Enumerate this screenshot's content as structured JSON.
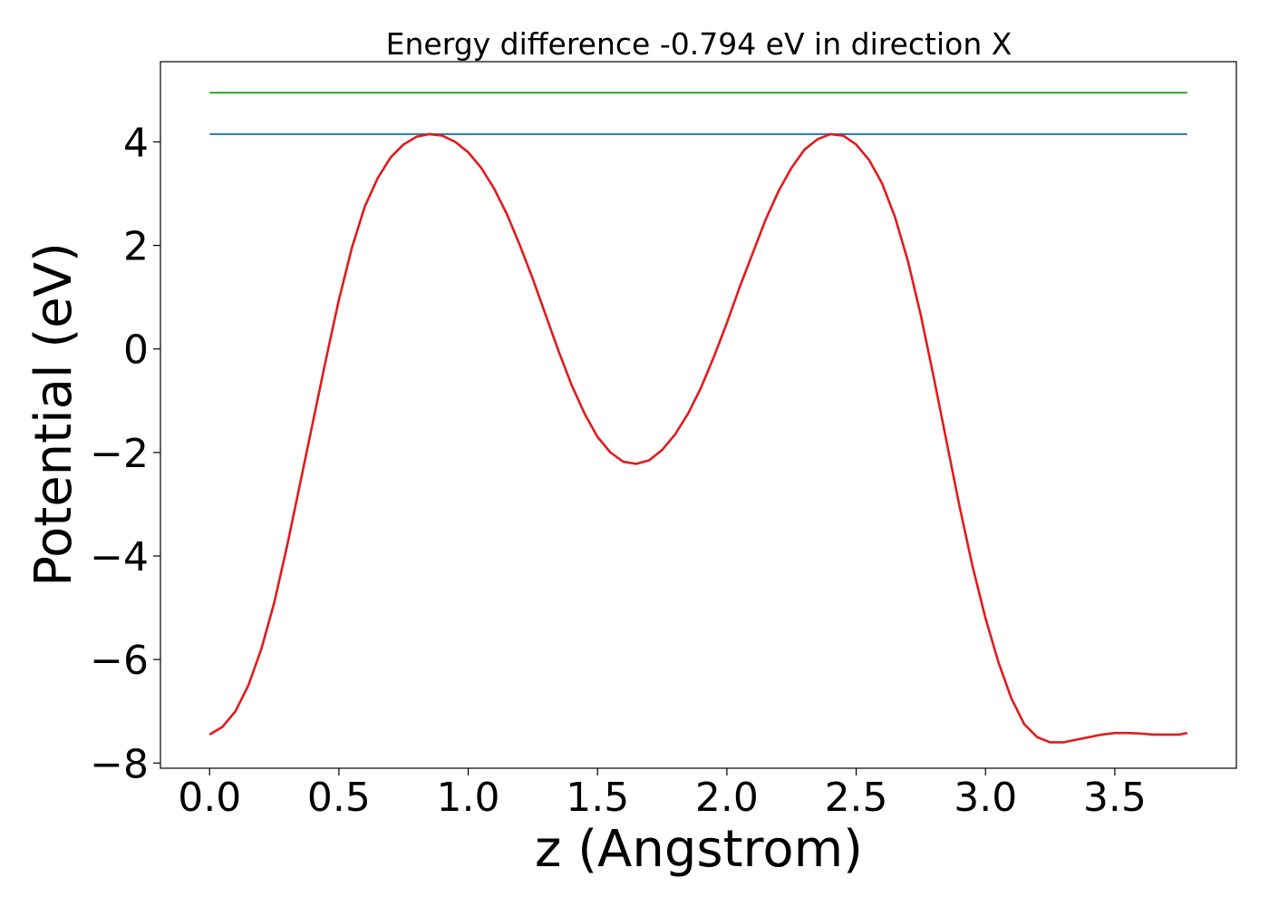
{
  "chart_data": {
    "type": "line",
    "title": "Energy difference -0.794 eV in direction X",
    "xlabel": "z (Angstrom)",
    "ylabel": "Potential (eV)",
    "xlim": [
      -0.19,
      3.97
    ],
    "ylim": [
      -8.1,
      5.55
    ],
    "x_ticks": [
      0.0,
      0.5,
      1.0,
      1.5,
      2.0,
      2.5,
      3.0,
      3.5
    ],
    "x_tick_labels": [
      "0.0",
      "0.5",
      "1.0",
      "1.5",
      "2.0",
      "2.5",
      "3.0",
      "3.5"
    ],
    "y_ticks": [
      -8,
      -6,
      -4,
      -2,
      0,
      2,
      4
    ],
    "y_tick_labels": [
      "−8",
      "−6",
      "−4",
      "−2",
      "0",
      "2",
      "4"
    ],
    "grid": false,
    "colors": {
      "potential": "#e31a1c",
      "level_low": "#1f78b4",
      "level_high": "#33a02c"
    },
    "hlines": [
      {
        "y": 4.95,
        "x": [
          0.0,
          3.78
        ],
        "color": "#33a02c"
      },
      {
        "y": 4.15,
        "x": [
          0.0,
          3.78
        ],
        "color": "#1f78b4"
      }
    ],
    "series": [
      {
        "color": "#e31a1c",
        "x": [
          0.0,
          0.05,
          0.1,
          0.15,
          0.2,
          0.25,
          0.3,
          0.35,
          0.4,
          0.45,
          0.5,
          0.55,
          0.6,
          0.65,
          0.7,
          0.75,
          0.8,
          0.85,
          0.9,
          0.95,
          1.0,
          1.05,
          1.1,
          1.15,
          1.2,
          1.25,
          1.3,
          1.35,
          1.4,
          1.45,
          1.5,
          1.55,
          1.6,
          1.65,
          1.7,
          1.75,
          1.8,
          1.85,
          1.9,
          1.95,
          2.0,
          2.05,
          2.1,
          2.15,
          2.2,
          2.25,
          2.3,
          2.35,
          2.4,
          2.45,
          2.5,
          2.55,
          2.6,
          2.65,
          2.7,
          2.75,
          2.8,
          2.85,
          2.9,
          2.95,
          3.0,
          3.05,
          3.1,
          3.15,
          3.2,
          3.25,
          3.3,
          3.35,
          3.4,
          3.45,
          3.5,
          3.55,
          3.6,
          3.65,
          3.7,
          3.75,
          3.78
        ],
        "y": [
          -7.45,
          -7.3,
          -7.0,
          -6.5,
          -5.8,
          -4.9,
          -3.8,
          -2.6,
          -1.4,
          -0.2,
          0.95,
          1.95,
          2.75,
          3.3,
          3.7,
          3.95,
          4.1,
          4.15,
          4.12,
          4.0,
          3.8,
          3.5,
          3.1,
          2.6,
          2.0,
          1.35,
          0.65,
          -0.05,
          -0.7,
          -1.25,
          -1.7,
          -2.0,
          -2.18,
          -2.22,
          -2.15,
          -1.95,
          -1.65,
          -1.25,
          -0.75,
          -0.15,
          0.5,
          1.2,
          1.85,
          2.5,
          3.05,
          3.5,
          3.85,
          4.05,
          4.15,
          4.12,
          3.95,
          3.65,
          3.2,
          2.55,
          1.7,
          0.65,
          -0.55,
          -1.8,
          -3.05,
          -4.2,
          -5.2,
          -6.05,
          -6.75,
          -7.25,
          -7.5,
          -7.6,
          -7.6,
          -7.55,
          -7.5,
          -7.45,
          -7.42,
          -7.42,
          -7.43,
          -7.45,
          -7.45,
          -7.45,
          -7.42
        ]
      }
    ]
  }
}
